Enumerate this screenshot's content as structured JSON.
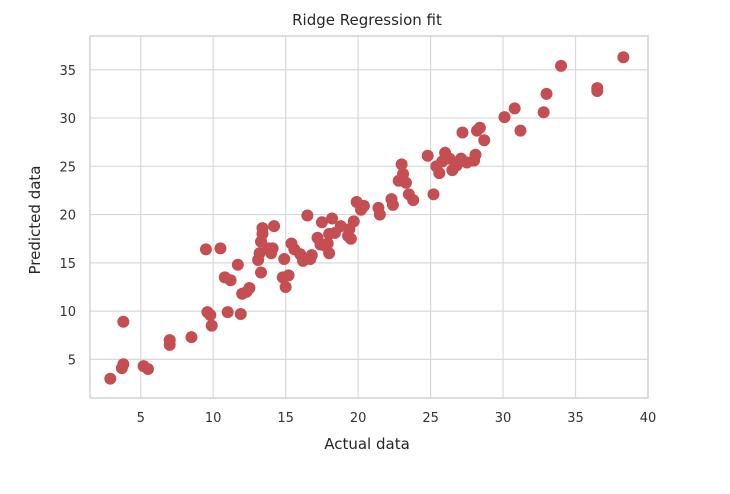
{
  "chart_data": {
    "type": "scatter",
    "title": "Ridge Regression fit",
    "xlabel": "Actual data",
    "ylabel": "Predicted data",
    "xlim": [
      1.5,
      40
    ],
    "ylim": [
      1,
      38.5
    ],
    "x_ticks": [
      5,
      10,
      15,
      20,
      25,
      30,
      35,
      40
    ],
    "y_ticks": [
      5,
      10,
      15,
      20,
      25,
      30,
      35
    ],
    "x_tick_labels": [
      "5",
      "10",
      "15",
      "20",
      "25",
      "30",
      "35",
      "40"
    ],
    "y_tick_labels": [
      "5",
      "10",
      "15",
      "20",
      "25",
      "30",
      "35"
    ],
    "grid": true,
    "marker_color": "#c44e52",
    "points": [
      [
        2.9,
        3.0
      ],
      [
        3.7,
        4.1
      ],
      [
        3.8,
        4.5
      ],
      [
        3.8,
        8.9
      ],
      [
        5.2,
        4.3
      ],
      [
        5.5,
        4.0
      ],
      [
        7.0,
        6.5
      ],
      [
        7.0,
        7.0
      ],
      [
        8.5,
        7.3
      ],
      [
        9.5,
        16.4
      ],
      [
        9.6,
        9.9
      ],
      [
        9.8,
        9.6
      ],
      [
        9.9,
        8.5
      ],
      [
        10.5,
        16.5
      ],
      [
        10.8,
        13.5
      ],
      [
        11.0,
        9.9
      ],
      [
        11.2,
        13.2
      ],
      [
        11.7,
        14.8
      ],
      [
        11.9,
        9.7
      ],
      [
        12.0,
        11.8
      ],
      [
        12.3,
        12.0
      ],
      [
        12.5,
        12.4
      ],
      [
        13.1,
        15.3
      ],
      [
        13.2,
        16.0
      ],
      [
        13.3,
        14.0
      ],
      [
        13.3,
        17.2
      ],
      [
        13.4,
        18.0
      ],
      [
        13.4,
        18.6
      ],
      [
        13.8,
        16.5
      ],
      [
        14.0,
        16.0
      ],
      [
        14.1,
        16.5
      ],
      [
        14.2,
        18.8
      ],
      [
        14.8,
        13.5
      ],
      [
        14.9,
        15.4
      ],
      [
        15.0,
        12.5
      ],
      [
        15.2,
        13.7
      ],
      [
        15.4,
        17.0
      ],
      [
        15.6,
        16.4
      ],
      [
        16.0,
        15.9
      ],
      [
        16.2,
        15.2
      ],
      [
        16.5,
        19.9
      ],
      [
        16.7,
        15.4
      ],
      [
        16.8,
        15.8
      ],
      [
        17.2,
        17.6
      ],
      [
        17.4,
        16.9
      ],
      [
        17.5,
        19.2
      ],
      [
        17.7,
        16.8
      ],
      [
        17.9,
        17.0
      ],
      [
        18.0,
        18.0
      ],
      [
        18.0,
        16.0
      ],
      [
        18.2,
        19.6
      ],
      [
        18.4,
        18.1
      ],
      [
        18.8,
        18.8
      ],
      [
        19.3,
        17.8
      ],
      [
        19.4,
        18.5
      ],
      [
        19.5,
        17.5
      ],
      [
        19.7,
        19.3
      ],
      [
        19.9,
        21.3
      ],
      [
        20.2,
        20.5
      ],
      [
        20.4,
        20.9
      ],
      [
        21.4,
        20.7
      ],
      [
        21.5,
        20.0
      ],
      [
        22.3,
        21.6
      ],
      [
        22.4,
        21.0
      ],
      [
        22.8,
        23.5
      ],
      [
        23.0,
        25.2
      ],
      [
        23.1,
        24.2
      ],
      [
        23.3,
        23.3
      ],
      [
        23.5,
        22.1
      ],
      [
        23.8,
        21.5
      ],
      [
        24.8,
        26.1
      ],
      [
        25.2,
        22.1
      ],
      [
        25.4,
        25.0
      ],
      [
        25.6,
        24.3
      ],
      [
        25.8,
        25.5
      ],
      [
        26.0,
        26.4
      ],
      [
        26.3,
        25.8
      ],
      [
        26.5,
        24.6
      ],
      [
        26.8,
        25.1
      ],
      [
        27.1,
        25.8
      ],
      [
        27.2,
        28.5
      ],
      [
        27.5,
        25.4
      ],
      [
        28.0,
        25.6
      ],
      [
        28.1,
        26.2
      ],
      [
        28.2,
        28.7
      ],
      [
        28.4,
        29.0
      ],
      [
        28.7,
        27.7
      ],
      [
        30.1,
        30.1
      ],
      [
        30.8,
        31.0
      ],
      [
        31.2,
        28.7
      ],
      [
        32.8,
        30.6
      ],
      [
        33.0,
        32.5
      ],
      [
        34.0,
        35.4
      ],
      [
        36.5,
        33.1
      ],
      [
        36.5,
        32.8
      ],
      [
        38.3,
        36.3
      ]
    ]
  }
}
